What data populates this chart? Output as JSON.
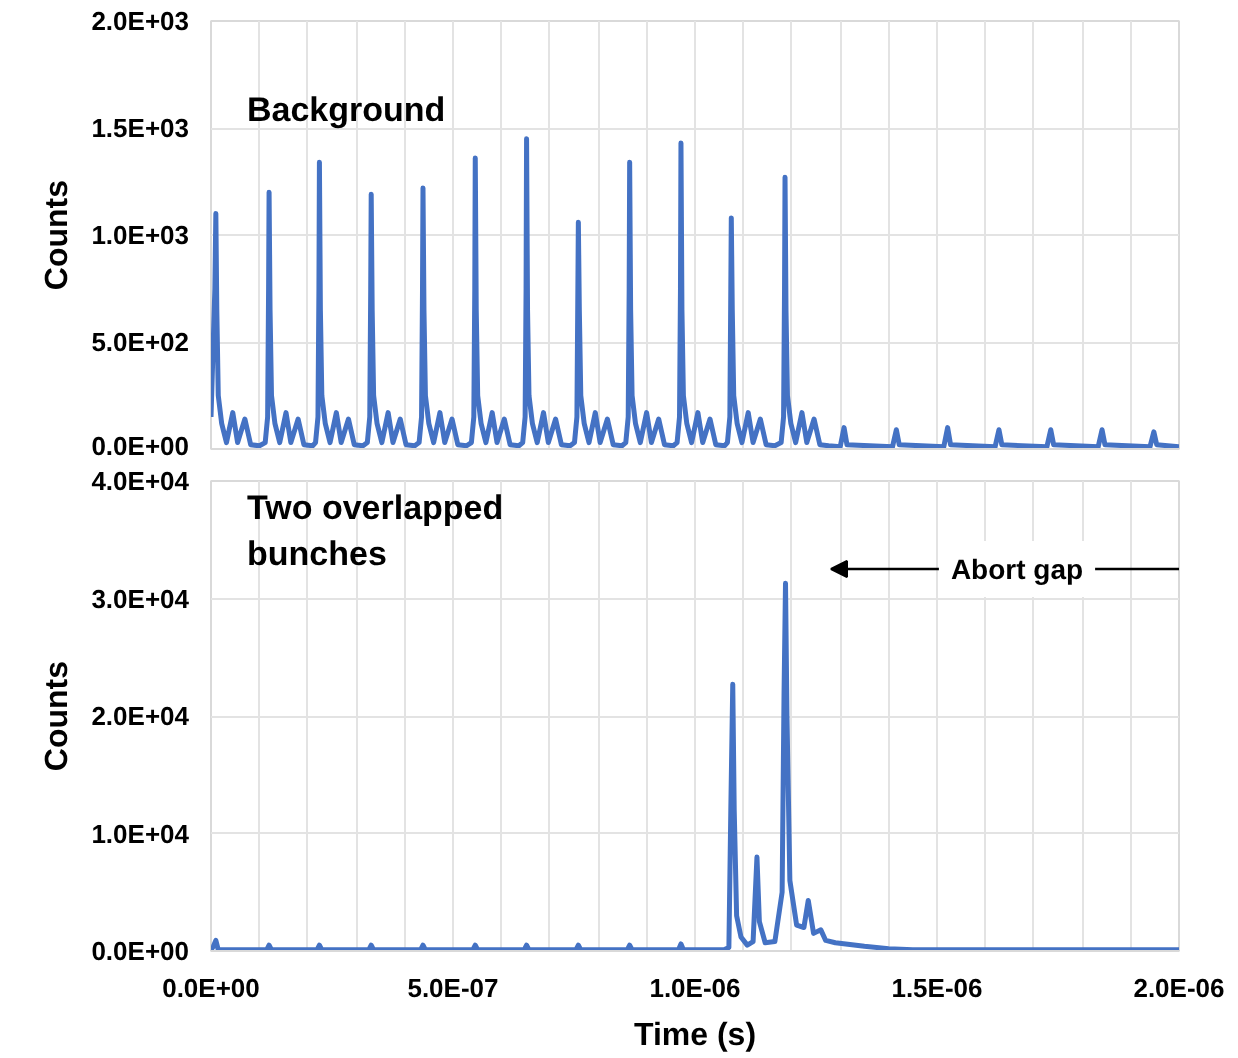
{
  "chart_data": [
    {
      "type": "line",
      "ylabel": "Counts",
      "annotations": [
        "Background"
      ],
      "xlim": [
        0,
        2e-06
      ],
      "ylim": [
        0,
        2000
      ],
      "xticks": [
        {
          "value": 1e-07,
          "label": null
        },
        {
          "value": 2e-07,
          "label": null
        },
        {
          "value": 3e-07,
          "label": null
        },
        {
          "value": 4e-07,
          "label": null
        },
        {
          "value": 5e-07,
          "label": null
        },
        {
          "value": 6e-07,
          "label": null
        },
        {
          "value": 7e-07,
          "label": null
        },
        {
          "value": 8e-07,
          "label": null
        },
        {
          "value": 9e-07,
          "label": null
        },
        {
          "value": 1e-06,
          "label": null
        },
        {
          "value": 1.1e-06,
          "label": null
        },
        {
          "value": 1.2e-06,
          "label": null
        },
        {
          "value": 1.3e-06,
          "label": null
        },
        {
          "value": 1.4e-06,
          "label": null
        },
        {
          "value": 1.5e-06,
          "label": null
        },
        {
          "value": 1.6e-06,
          "label": null
        },
        {
          "value": 1.7e-06,
          "label": null
        },
        {
          "value": 1.8e-06,
          "label": null
        },
        {
          "value": 1.9e-06,
          "label": null
        }
      ],
      "yticks": [
        {
          "value": 0,
          "label": "0.0E+00"
        },
        {
          "value": 500,
          "label": "5.0E+02"
        },
        {
          "value": 1000,
          "label": "1.0E+03"
        },
        {
          "value": 1500,
          "label": "1.5E+03"
        },
        {
          "value": 2000,
          "label": "2.0E+03"
        }
      ],
      "tick_labels": "y",
      "grid": true,
      "line_style": "solid",
      "series": [
        {
          "color": "#4472c4",
          "x": [
            0,
            8e-09,
            1e-08,
            1.2e-08,
            1.5e-08,
            2.2e-08,
            3.2e-08,
            4.5e-08,
            5.5e-08,
            7e-08,
            8.2e-08,
            1e-07,
            1.12e-07,
            1.17e-07,
            1.19e-07,
            1.2e-07,
            1.22e-07,
            1.25e-07,
            1.32e-07,
            1.42e-07,
            1.55e-07,
            1.65e-07,
            1.8e-07,
            1.92e-07,
            2.1e-07,
            2.16e-07,
            2.21e-07,
            2.23e-07,
            2.24e-07,
            2.26e-07,
            2.29e-07,
            2.36e-07,
            2.46e-07,
            2.59e-07,
            2.69e-07,
            2.84e-07,
            2.96e-07,
            3.14e-07,
            3.23e-07,
            3.28e-07,
            3.3e-07,
            3.31e-07,
            3.33e-07,
            3.36e-07,
            3.43e-07,
            3.53e-07,
            3.66e-07,
            3.76e-07,
            3.91e-07,
            4.03e-07,
            4.21e-07,
            4.3e-07,
            4.35e-07,
            4.37e-07,
            4.38e-07,
            4.4e-07,
            4.43e-07,
            4.5e-07,
            4.6e-07,
            4.73e-07,
            4.83e-07,
            4.98e-07,
            5.1e-07,
            5.28e-07,
            5.38e-07,
            5.43e-07,
            5.45e-07,
            5.46e-07,
            5.48e-07,
            5.51e-07,
            5.58e-07,
            5.68e-07,
            5.81e-07,
            5.91e-07,
            6.06e-07,
            6.18e-07,
            6.36e-07,
            6.44e-07,
            6.49e-07,
            6.51e-07,
            6.52e-07,
            6.54e-07,
            6.57e-07,
            6.64e-07,
            6.74e-07,
            6.87e-07,
            6.97e-07,
            7.12e-07,
            7.24e-07,
            7.42e-07,
            7.51e-07,
            7.56e-07,
            7.58e-07,
            7.59e-07,
            7.61e-07,
            7.64e-07,
            7.71e-07,
            7.81e-07,
            7.94e-07,
            8.04e-07,
            8.19e-07,
            8.31e-07,
            8.49e-07,
            8.57e-07,
            8.62e-07,
            8.64e-07,
            8.65e-07,
            8.67e-07,
            8.7e-07,
            8.77e-07,
            8.87e-07,
            9e-07,
            9.1e-07,
            9.25e-07,
            9.37e-07,
            9.55e-07,
            9.63e-07,
            9.68e-07,
            9.7e-07,
            9.71e-07,
            9.73e-07,
            9.76e-07,
            9.83e-07,
            9.93e-07,
            1.006e-06,
            1.016e-06,
            1.031e-06,
            1.043e-06,
            1.061e-06,
            1.067e-06,
            1.072e-06,
            1.074e-06,
            1.075e-06,
            1.077e-06,
            1.08e-06,
            1.087e-06,
            1.097e-06,
            1.11e-06,
            1.12e-06,
            1.135e-06,
            1.147e-06,
            1.165e-06,
            1.178e-06,
            1.183e-06,
            1.185e-06,
            1.186e-06,
            1.188e-06,
            1.191e-06,
            1.198e-06,
            1.208e-06,
            1.221e-06,
            1.231e-06,
            1.246e-06,
            1.258e-06,
            1.276e-06,
            1.3e-06,
            1.308e-06,
            1.314e-06,
            1.408e-06,
            1.416e-06,
            1.422e-06,
            1.514e-06,
            1.522e-06,
            1.528e-06,
            1.62e-06,
            1.628e-06,
            1.634e-06,
            1.727e-06,
            1.735e-06,
            1.741e-06,
            1.833e-06,
            1.841e-06,
            1.847e-06,
            1.94e-06,
            1.948e-06,
            1.954e-06,
            2e-06
          ],
          "values": [
            150,
            750,
            1100,
            650,
            250,
            120,
            30,
            170,
            30,
            140,
            20,
            15,
            30,
            150,
            750,
            1200,
            650,
            250,
            120,
            30,
            170,
            30,
            140,
            20,
            15,
            30,
            150,
            750,
            1340,
            650,
            250,
            120,
            30,
            170,
            30,
            140,
            20,
            15,
            30,
            150,
            750,
            1190,
            650,
            250,
            120,
            30,
            170,
            30,
            140,
            20,
            15,
            30,
            150,
            750,
            1220,
            650,
            250,
            120,
            30,
            170,
            30,
            140,
            20,
            15,
            30,
            150,
            750,
            1360,
            650,
            250,
            120,
            30,
            170,
            30,
            140,
            20,
            15,
            30,
            150,
            750,
            1450,
            650,
            250,
            120,
            30,
            170,
            30,
            140,
            20,
            15,
            30,
            150,
            750,
            1060,
            650,
            250,
            120,
            30,
            170,
            30,
            140,
            20,
            15,
            30,
            150,
            750,
            1340,
            650,
            250,
            120,
            30,
            170,
            30,
            140,
            20,
            15,
            30,
            150,
            750,
            1430,
            650,
            250,
            120,
            30,
            170,
            30,
            140,
            20,
            15,
            30,
            150,
            750,
            1080,
            650,
            250,
            120,
            30,
            170,
            30,
            140,
            20,
            15,
            30,
            150,
            750,
            1270,
            650,
            250,
            120,
            30,
            170,
            30,
            140,
            20,
            15,
            10,
            100,
            20,
            10,
            90,
            20,
            10,
            100,
            20,
            10,
            90,
            20,
            10,
            90,
            20,
            10,
            90,
            20,
            10,
            80,
            20,
            10
          ]
        }
      ]
    },
    {
      "type": "line",
      "xlabel": "Time (s)",
      "ylabel": "Counts",
      "annotations": [
        "Two overlapped\nbunches",
        "Abort gap"
      ],
      "xlim": [
        0,
        2e-06
      ],
      "ylim": [
        0,
        40000
      ],
      "xticks": [
        {
          "value": 0,
          "label": "0.0E+00"
        },
        {
          "value": 1e-07,
          "label": null
        },
        {
          "value": 2e-07,
          "label": null
        },
        {
          "value": 3e-07,
          "label": null
        },
        {
          "value": 4e-07,
          "label": null
        },
        {
          "value": 5e-07,
          "label": "5.0E-07"
        },
        {
          "value": 6e-07,
          "label": null
        },
        {
          "value": 7e-07,
          "label": null
        },
        {
          "value": 8e-07,
          "label": null
        },
        {
          "value": 9e-07,
          "label": null
        },
        {
          "value": 1e-06,
          "label": "1.0E-06"
        },
        {
          "value": 1.1e-06,
          "label": null
        },
        {
          "value": 1.2e-06,
          "label": null
        },
        {
          "value": 1.3e-06,
          "label": null
        },
        {
          "value": 1.4e-06,
          "label": null
        },
        {
          "value": 1.5e-06,
          "label": "1.5E-06"
        },
        {
          "value": 1.6e-06,
          "label": null
        },
        {
          "value": 1.7e-06,
          "label": null
        },
        {
          "value": 1.8e-06,
          "label": null
        },
        {
          "value": 1.9e-06,
          "label": null
        },
        {
          "value": 2e-06,
          "label": "2.0E-06"
        }
      ],
      "yticks": [
        {
          "value": 0,
          "label": "0.0E+00"
        },
        {
          "value": 10000,
          "label": "1.0E+04"
        },
        {
          "value": 20000,
          "label": "2.0E+04"
        },
        {
          "value": 30000,
          "label": "3.0E+04"
        },
        {
          "value": 40000,
          "label": "4.0E+04"
        }
      ],
      "grid": true,
      "line_style": "solid",
      "series": [
        {
          "color": "#4472c4",
          "x": [
            0,
            5e-09,
            1e-08,
            1.5e-08,
            1.15e-07,
            1.2e-07,
            1.25e-07,
            2.19e-07,
            2.24e-07,
            2.29e-07,
            3.26e-07,
            3.31e-07,
            3.36e-07,
            4.33e-07,
            4.38e-07,
            4.43e-07,
            5.41e-07,
            5.46e-07,
            5.51e-07,
            6.47e-07,
            6.52e-07,
            6.57e-07,
            7.54e-07,
            7.59e-07,
            7.64e-07,
            8.6e-07,
            8.65e-07,
            8.7e-07,
            9.66e-07,
            9.71e-07,
            9.76e-07,
            1.06e-06,
            1.07e-06,
            1.074e-06,
            1.078e-06,
            1.081e-06,
            1.086e-06,
            1.095e-06,
            1.108e-06,
            1.12e-06,
            1.128e-06,
            1.133e-06,
            1.145e-06,
            1.165e-06,
            1.18e-06,
            1.184e-06,
            1.187e-06,
            1.19e-06,
            1.196e-06,
            1.21e-06,
            1.225e-06,
            1.234e-06,
            1.245e-06,
            1.26e-06,
            1.27e-06,
            1.29e-06,
            1.35e-06,
            1.4e-06,
            1.45e-06,
            2e-06
          ],
          "values": [
            100,
            400,
            900,
            100,
            100,
            500,
            100,
            100,
            500,
            100,
            100,
            500,
            100,
            100,
            500,
            100,
            100,
            500,
            100,
            100,
            500,
            100,
            100,
            500,
            100,
            100,
            500,
            100,
            100,
            600,
            100,
            100,
            300,
            12000,
            22700,
            12000,
            3000,
            1200,
            500,
            800,
            8000,
            2500,
            700,
            800,
            5000,
            22000,
            31300,
            20000,
            6000,
            2200,
            2000,
            4300,
            1500,
            1800,
            900,
            700,
            400,
            200,
            100,
            100
          ]
        }
      ]
    }
  ]
}
